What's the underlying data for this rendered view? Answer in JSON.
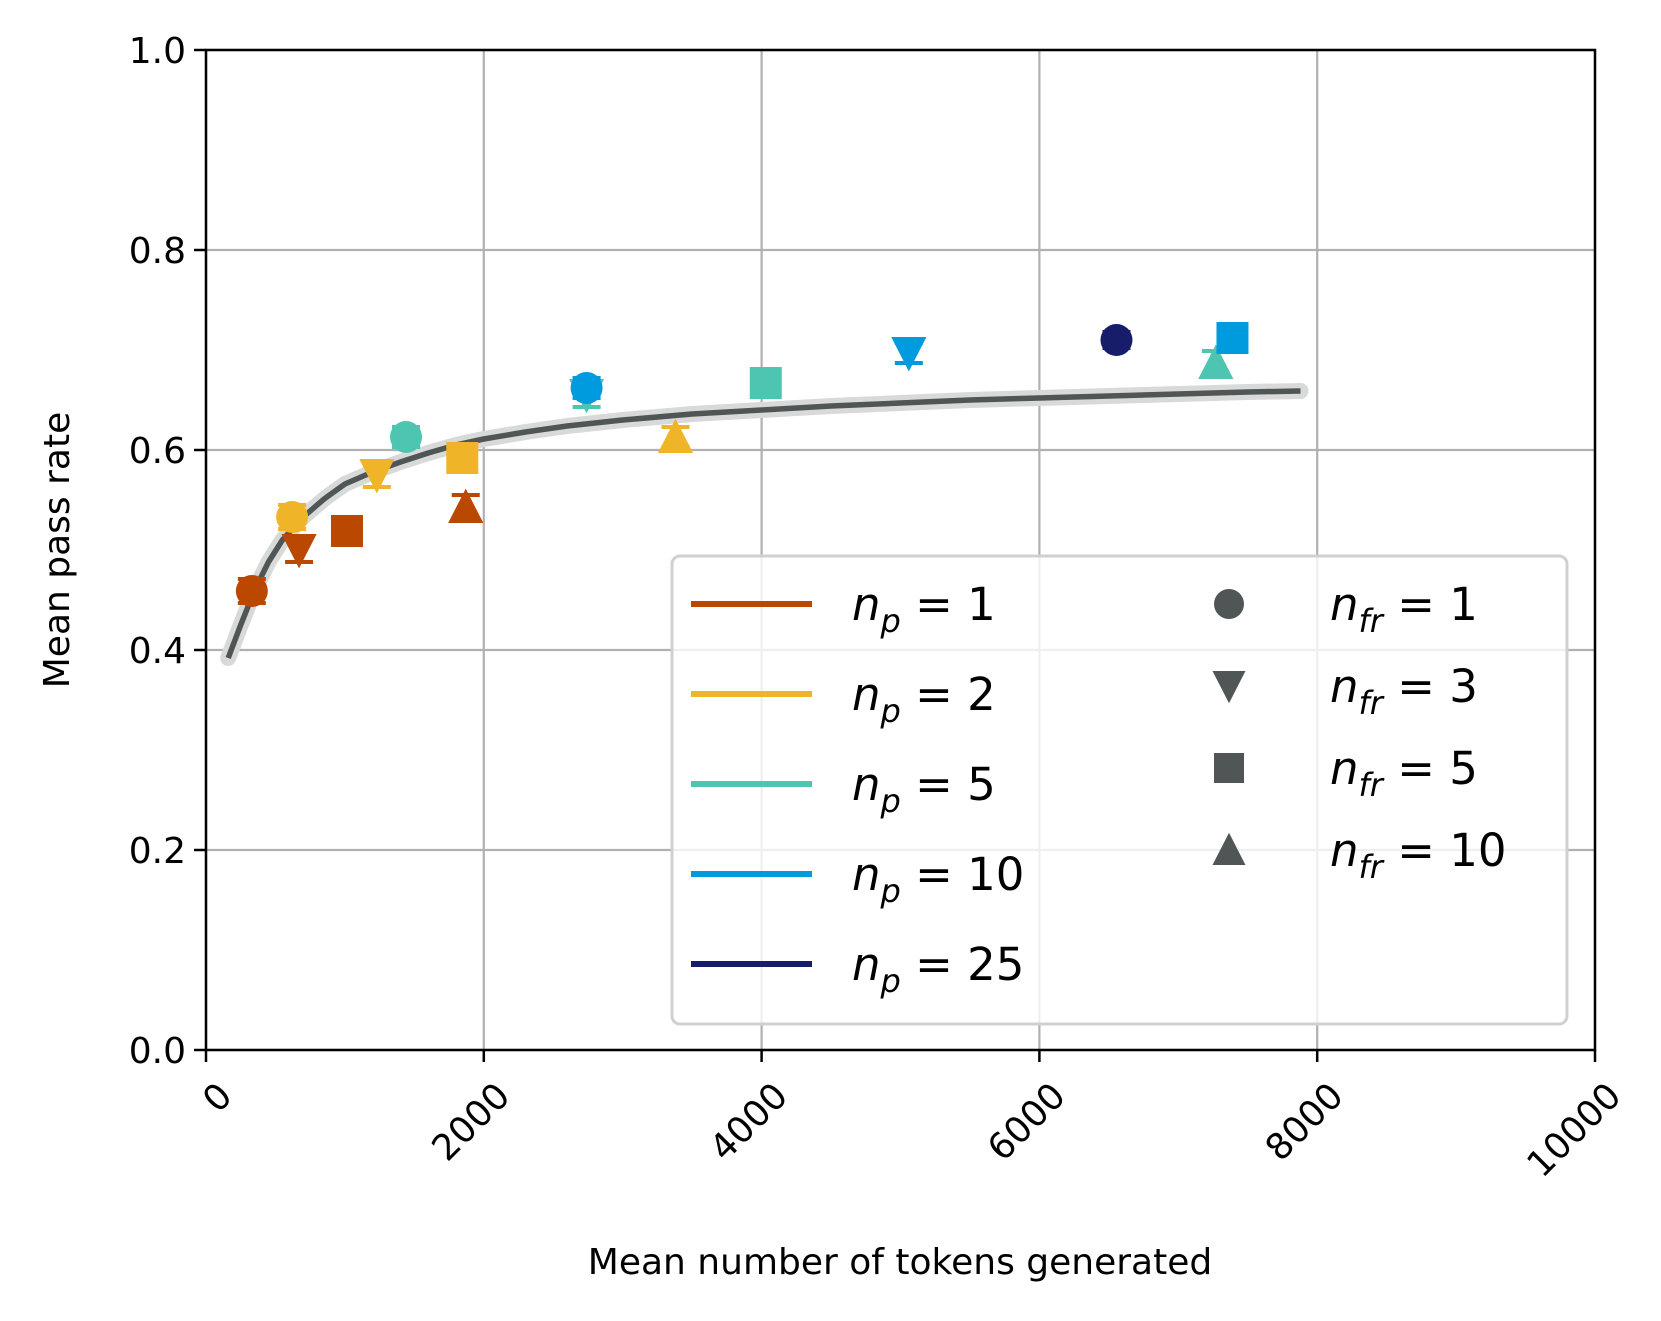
{
  "chart_data": {
    "type": "scatter",
    "title": "",
    "xlabel": "Mean number of tokens generated",
    "ylabel": "Mean pass rate",
    "xlim": [
      0,
      10000
    ],
    "ylim": [
      0.0,
      1.0
    ],
    "grid": true,
    "legend_placement": "lower-right",
    "x_ticks": [
      "0",
      "2000",
      "4000",
      "6000",
      "8000",
      "10000"
    ],
    "x_tick_values": [
      0,
      2000,
      4000,
      6000,
      8000,
      10000
    ],
    "y_ticks": [
      "0.0",
      "0.2",
      "0.4",
      "0.6",
      "0.8",
      "1.0"
    ],
    "y_tick_values": [
      0.0,
      0.2,
      0.4,
      0.6,
      0.8,
      1.0
    ],
    "np_series": [
      {
        "label_var": "n",
        "label_sub": "p",
        "label_val": "1",
        "color": "#bb4800"
      },
      {
        "label_var": "n",
        "label_sub": "p",
        "label_val": "2",
        "color": "#f0b429"
      },
      {
        "label_var": "n",
        "label_sub": "p",
        "label_val": "5",
        "color": "#4ec5b0"
      },
      {
        "label_var": "n",
        "label_sub": "p",
        "label_val": "10",
        "color": "#009ade"
      },
      {
        "label_var": "n",
        "label_sub": "p",
        "label_val": "25",
        "color": "#171d6b"
      }
    ],
    "nfr_markers": [
      {
        "label_var": "n",
        "label_sub": "fr",
        "label_val": "1",
        "marker": "circle"
      },
      {
        "label_var": "n",
        "label_sub": "fr",
        "label_val": "3",
        "marker": "triangle-down"
      },
      {
        "label_var": "n",
        "label_sub": "fr",
        "label_val": "5",
        "marker": "square"
      },
      {
        "label_var": "n",
        "label_sub": "fr",
        "label_val": "10",
        "marker": "triangle-up"
      }
    ],
    "marker_legend_color": "#505556",
    "points": [
      {
        "np": 1,
        "nfr": 1,
        "x": 330,
        "y": 0.459,
        "err": 0.012
      },
      {
        "np": 1,
        "nfr": 3,
        "x": 670,
        "y": 0.5,
        "err": 0.012
      },
      {
        "np": 1,
        "nfr": 5,
        "x": 1015,
        "y": 0.519,
        "err": 0.01
      },
      {
        "np": 1,
        "nfr": 10,
        "x": 1870,
        "y": 0.543,
        "err": 0.012
      },
      {
        "np": 2,
        "nfr": 1,
        "x": 620,
        "y": 0.533,
        "err": 0.012
      },
      {
        "np": 2,
        "nfr": 3,
        "x": 1230,
        "y": 0.575,
        "err": 0.012
      },
      {
        "np": 2,
        "nfr": 5,
        "x": 1845,
        "y": 0.592,
        "err": 0.01
      },
      {
        "np": 2,
        "nfr": 10,
        "x": 3380,
        "y": 0.613,
        "err": 0.01
      },
      {
        "np": 5,
        "nfr": 1,
        "x": 1440,
        "y": 0.613,
        "err": 0.01
      },
      {
        "np": 5,
        "nfr": 3,
        "x": 2740,
        "y": 0.655,
        "err": 0.012
      },
      {
        "np": 5,
        "nfr": 5,
        "x": 4030,
        "y": 0.667,
        "err": 0.008
      },
      {
        "np": 5,
        "nfr": 10,
        "x": 7270,
        "y": 0.687,
        "err": 0.012
      },
      {
        "np": 10,
        "nfr": 1,
        "x": 2740,
        "y": 0.662,
        "err": 0.01
      },
      {
        "np": 10,
        "nfr": 3,
        "x": 5060,
        "y": 0.697,
        "err": 0.01
      },
      {
        "np": 10,
        "nfr": 5,
        "x": 7390,
        "y": 0.712,
        "err": 0.008
      },
      {
        "np": 25,
        "nfr": 1,
        "x": 6555,
        "y": 0.71,
        "err": 0.008
      }
    ],
    "fit_curve": {
      "color": "#505556",
      "band_color": "#d8d9d9",
      "x": [
        160,
        250,
        350,
        450,
        550,
        700,
        850,
        1000,
        1200,
        1400,
        1600,
        1800,
        2000,
        2300,
        2600,
        3000,
        3500,
        4000,
        4500,
        5000,
        5500,
        6000,
        6500,
        7000,
        7500,
        7880
      ],
      "y": [
        0.392,
        0.425,
        0.46,
        0.488,
        0.51,
        0.533,
        0.551,
        0.566,
        0.578,
        0.588,
        0.597,
        0.605,
        0.611,
        0.618,
        0.624,
        0.63,
        0.636,
        0.64,
        0.644,
        0.647,
        0.65,
        0.652,
        0.654,
        0.656,
        0.658,
        0.659
      ]
    }
  }
}
